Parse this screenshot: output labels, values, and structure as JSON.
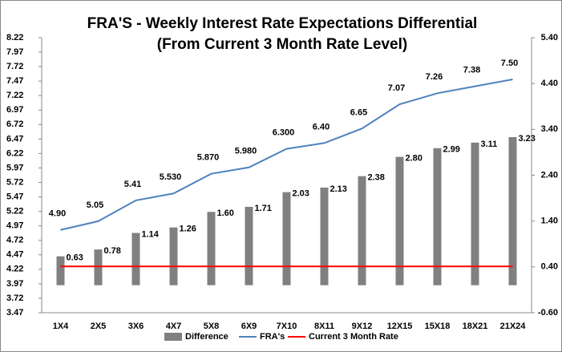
{
  "chart_data": {
    "type": "bar-line",
    "title": "FRA'S - Weekly Interest Rate Expectations Differential",
    "subtitle": "(From  Current 3 Month Rate Level)",
    "categories": [
      "1X4",
      "2X5",
      "3X6",
      "4X7",
      "5X8",
      "6X9",
      "7X10",
      "8X11",
      "9X12",
      "12X15",
      "15X18",
      "18X21",
      "21X24"
    ],
    "series": [
      {
        "name": "Difference",
        "type": "bar",
        "axis": "y2",
        "color": "#808080",
        "values": [
          0.63,
          0.78,
          1.14,
          1.26,
          1.6,
          1.71,
          2.03,
          2.13,
          2.38,
          2.8,
          2.99,
          3.11,
          3.23
        ],
        "value_labels": [
          "0.63",
          "0.78",
          "1.14",
          "1.26",
          "1.60",
          "1.71",
          "2.03",
          "2.13",
          "2.38",
          "2.80",
          "2.99",
          "3.11",
          "3.23"
        ]
      },
      {
        "name": "FRA's",
        "type": "line",
        "color": "#4f81bd",
        "values": [
          4.9,
          5.05,
          5.41,
          5.53,
          5.87,
          5.98,
          6.3,
          6.4,
          6.65,
          7.07,
          7.26,
          7.38,
          7.5
        ],
        "value_labels": [
          "4.90",
          "5.05",
          "5.41",
          "5.530",
          "5.870",
          "5.980",
          "6.300",
          "6.40",
          "6.65",
          "7.07",
          "7.26",
          "7.38",
          "7.50"
        ]
      },
      {
        "name": "Current 3 Month Rate",
        "type": "line",
        "color": "#ff0000",
        "values": [
          4.27,
          4.27,
          4.27,
          4.27,
          4.27,
          4.27,
          4.27,
          4.27,
          4.27,
          4.27,
          4.27,
          4.27,
          4.27
        ]
      }
    ],
    "ylim": [
      3.47,
      8.22
    ],
    "yticks": [
      3.47,
      3.72,
      3.97,
      4.22,
      4.47,
      4.72,
      4.97,
      5.22,
      5.47,
      5.72,
      5.97,
      6.22,
      6.47,
      6.72,
      6.97,
      7.22,
      7.47,
      7.72,
      7.97,
      8.22
    ],
    "y2lim": [
      -0.6,
      5.4
    ],
    "y2ticks": [
      {
        "value": -0.6,
        "label": "-0.60"
      },
      {
        "value": 0.4,
        "label": "0.40"
      },
      {
        "value": 1.4,
        "label": "1.40"
      },
      {
        "value": 2.4,
        "label": "2.40"
      },
      {
        "value": 3.4,
        "label": "3.40"
      },
      {
        "value": 4.4,
        "label": "4.40"
      },
      {
        "value": 5.4,
        "label": "5.40"
      }
    ],
    "grid": false,
    "legend": "bottom"
  }
}
